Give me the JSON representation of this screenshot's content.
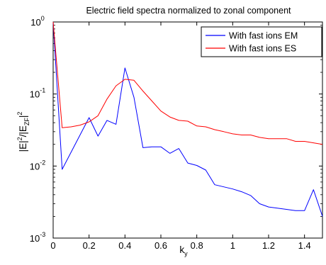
{
  "chart_data": {
    "type": "line",
    "title": "Electric field spectra normalized to zonal component",
    "xlabel": {
      "base": "k",
      "sub": "y"
    },
    "ylabel": {
      "a": "|E|",
      "a_sup": "2",
      "b": "/|E",
      "b_sub": "ZF",
      "c": "|",
      "c_sup": "2"
    },
    "xlim": [
      0,
      1.5
    ],
    "ylim": [
      0.001,
      1
    ],
    "yscale": "log",
    "grid": false,
    "legend": "top-right",
    "xticks": [
      {
        "v": 0,
        "label": "0"
      },
      {
        "v": 0.2,
        "label": "0.2"
      },
      {
        "v": 0.4,
        "label": "0.4"
      },
      {
        "v": 0.6,
        "label": "0.6"
      },
      {
        "v": 0.8,
        "label": "0.8"
      },
      {
        "v": 1.0,
        "label": "1"
      },
      {
        "v": 1.2,
        "label": "1.2"
      },
      {
        "v": 1.4,
        "label": "1.4"
      }
    ],
    "yticks": [
      {
        "v": 1,
        "base": "10",
        "exp": "0"
      },
      {
        "v": 0.1,
        "base": "10",
        "exp": "-1"
      },
      {
        "v": 0.01,
        "base": "10",
        "exp": "-2"
      },
      {
        "v": 0.001,
        "base": "10",
        "exp": "-3"
      }
    ],
    "series": [
      {
        "name": "With fast ions EM",
        "color": "#0000ff",
        "x": [
          0,
          0.05,
          0.2,
          0.25,
          0.3,
          0.35,
          0.4,
          0.45,
          0.5,
          0.55,
          0.6,
          0.65,
          0.7,
          0.75,
          0.8,
          0.85,
          0.9,
          1.0,
          1.05,
          1.1,
          1.15,
          1.2,
          1.3,
          1.35,
          1.4,
          1.45,
          1.5
        ],
        "y": [
          1.0,
          0.009,
          0.047,
          0.026,
          0.043,
          0.038,
          0.23,
          0.09,
          0.018,
          0.0185,
          0.0185,
          0.015,
          0.0175,
          0.011,
          0.0102,
          0.0088,
          0.0055,
          0.0048,
          0.0044,
          0.0039,
          0.003,
          0.0027,
          0.0025,
          0.0024,
          0.0024,
          0.0047,
          0.002
        ]
      },
      {
        "name": "With fast ions ES",
        "color": "#ff0000",
        "x": [
          0,
          0.05,
          0.1,
          0.15,
          0.2,
          0.25,
          0.3,
          0.35,
          0.4,
          0.45,
          0.5,
          0.55,
          0.6,
          0.65,
          0.7,
          0.75,
          0.8,
          0.85,
          0.9,
          0.95,
          1.0,
          1.05,
          1.1,
          1.15,
          1.2,
          1.25,
          1.3,
          1.35,
          1.4,
          1.45,
          1.5
        ],
        "y": [
          1.0,
          0.034,
          0.035,
          0.037,
          0.041,
          0.05,
          0.085,
          0.13,
          0.16,
          0.155,
          0.11,
          0.08,
          0.058,
          0.048,
          0.043,
          0.042,
          0.036,
          0.035,
          0.032,
          0.03,
          0.028,
          0.027,
          0.027,
          0.025,
          0.024,
          0.024,
          0.024,
          0.022,
          0.022,
          0.021,
          0.02
        ]
      }
    ]
  }
}
